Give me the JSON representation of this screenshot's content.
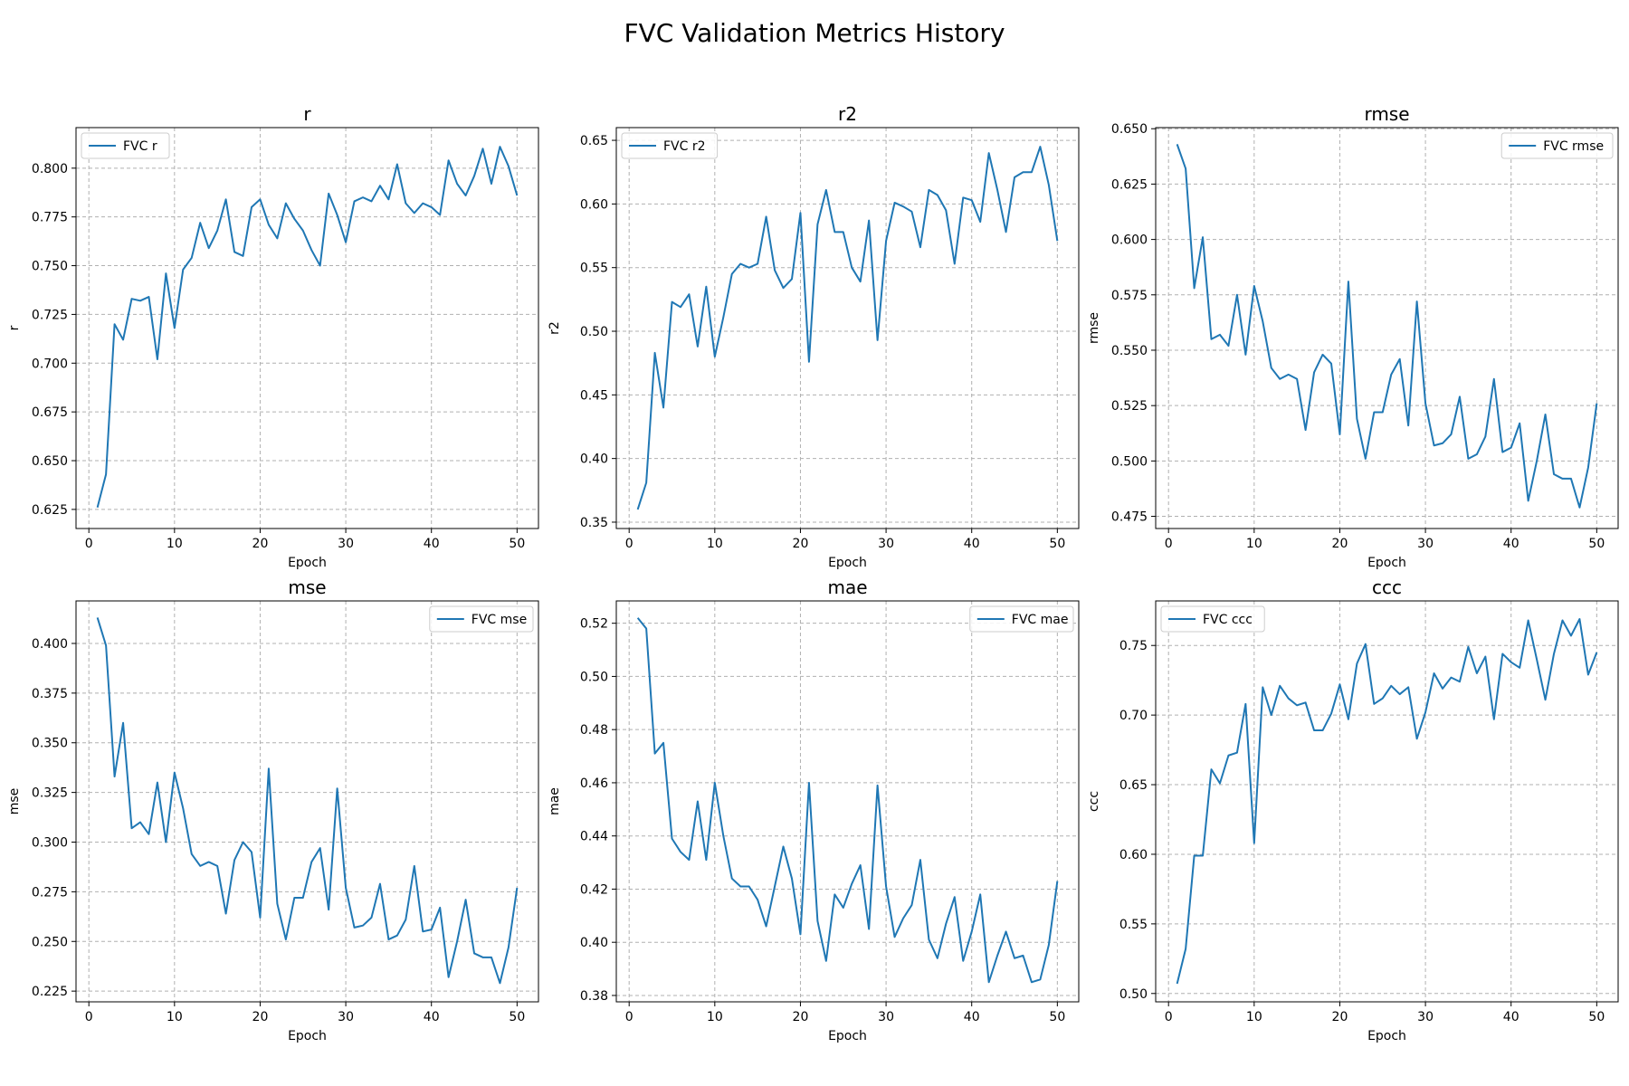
{
  "figure": {
    "title": "FVC Validation Metrics History"
  },
  "style": {
    "line_color": "#1f77b4",
    "grid_color": "#b0b0b0"
  },
  "chart_data": [
    {
      "type": "line",
      "title": "r",
      "xlabel": "Epoch",
      "ylabel": "r",
      "xlim": [
        -1.5,
        52.5
      ],
      "ylim": [
        0.6152,
        0.8208
      ],
      "xticks": [
        0,
        10,
        20,
        30,
        40,
        50
      ],
      "yticks": [
        0.625,
        0.65,
        0.675,
        0.7,
        0.725,
        0.75,
        0.775,
        0.8
      ],
      "grid": true,
      "legend_position": "upper left",
      "series": [
        {
          "name": "FVC r",
          "x": [
            1,
            2,
            3,
            4,
            5,
            6,
            7,
            8,
            9,
            10,
            11,
            12,
            13,
            14,
            15,
            16,
            17,
            18,
            19,
            20,
            21,
            22,
            23,
            24,
            25,
            26,
            27,
            28,
            29,
            30,
            31,
            32,
            33,
            34,
            35,
            36,
            37,
            38,
            39,
            40,
            41,
            42,
            43,
            44,
            45,
            46,
            47,
            48,
            49,
            50
          ],
          "values": [
            0.626,
            0.643,
            0.72,
            0.712,
            0.733,
            0.732,
            0.734,
            0.702,
            0.746,
            0.718,
            0.748,
            0.754,
            0.772,
            0.759,
            0.768,
            0.784,
            0.757,
            0.755,
            0.78,
            0.784,
            0.771,
            0.764,
            0.782,
            0.774,
            0.768,
            0.758,
            0.75,
            0.787,
            0.776,
            0.762,
            0.783,
            0.785,
            0.783,
            0.791,
            0.784,
            0.802,
            0.782,
            0.777,
            0.782,
            0.78,
            0.776,
            0.804,
            0.792,
            0.786,
            0.796,
            0.81,
            0.792,
            0.811,
            0.801,
            0.786
          ]
        }
      ]
    },
    {
      "type": "line",
      "title": "r2",
      "xlabel": "Epoch",
      "ylabel": "r2",
      "xlim": [
        -1.5,
        52.5
      ],
      "ylim": [
        0.345,
        0.66
      ],
      "xticks": [
        0,
        10,
        20,
        30,
        40,
        50
      ],
      "yticks": [
        0.35,
        0.4,
        0.45,
        0.5,
        0.55,
        0.6,
        0.65
      ],
      "grid": true,
      "legend_position": "upper left",
      "series": [
        {
          "name": "FVC r2",
          "x": [
            1,
            2,
            3,
            4,
            5,
            6,
            7,
            8,
            9,
            10,
            11,
            12,
            13,
            14,
            15,
            16,
            17,
            18,
            19,
            20,
            21,
            22,
            23,
            24,
            25,
            26,
            27,
            28,
            29,
            30,
            31,
            32,
            33,
            34,
            35,
            36,
            37,
            38,
            39,
            40,
            41,
            42,
            43,
            44,
            45,
            46,
            47,
            48,
            49,
            50
          ],
          "values": [
            0.36,
            0.381,
            0.483,
            0.44,
            0.523,
            0.519,
            0.529,
            0.488,
            0.535,
            0.48,
            0.511,
            0.545,
            0.553,
            0.55,
            0.553,
            0.59,
            0.548,
            0.534,
            0.541,
            0.593,
            0.476,
            0.584,
            0.611,
            0.578,
            0.578,
            0.55,
            0.539,
            0.587,
            0.493,
            0.571,
            0.601,
            0.598,
            0.594,
            0.566,
            0.611,
            0.607,
            0.595,
            0.553,
            0.605,
            0.603,
            0.586,
            0.64,
            0.611,
            0.578,
            0.621,
            0.625,
            0.625,
            0.645,
            0.615,
            0.571
          ]
        }
      ]
    },
    {
      "type": "line",
      "title": "rmse",
      "xlabel": "Epoch",
      "ylabel": "rmse",
      "xlim": [
        -1.5,
        52.5
      ],
      "ylim": [
        0.4695,
        0.6505
      ],
      "xticks": [
        0,
        10,
        20,
        30,
        40,
        50
      ],
      "yticks": [
        0.475,
        0.5,
        0.525,
        0.55,
        0.575,
        0.6,
        0.625,
        0.65
      ],
      "grid": true,
      "legend_position": "upper right",
      "series": [
        {
          "name": "FVC rmse",
          "x": [
            1,
            2,
            3,
            4,
            5,
            6,
            7,
            8,
            9,
            10,
            11,
            12,
            13,
            14,
            15,
            16,
            17,
            18,
            19,
            20,
            21,
            22,
            23,
            24,
            25,
            26,
            27,
            28,
            29,
            30,
            31,
            32,
            33,
            34,
            35,
            36,
            37,
            38,
            39,
            40,
            41,
            42,
            43,
            44,
            45,
            46,
            47,
            48,
            49,
            50
          ],
          "values": [
            0.643,
            0.632,
            0.578,
            0.601,
            0.555,
            0.557,
            0.552,
            0.575,
            0.548,
            0.579,
            0.563,
            0.542,
            0.537,
            0.539,
            0.537,
            0.514,
            0.54,
            0.548,
            0.544,
            0.512,
            0.581,
            0.519,
            0.501,
            0.522,
            0.522,
            0.539,
            0.546,
            0.516,
            0.572,
            0.526,
            0.507,
            0.508,
            0.512,
            0.529,
            0.501,
            0.503,
            0.511,
            0.537,
            0.504,
            0.506,
            0.517,
            0.482,
            0.5,
            0.521,
            0.494,
            0.492,
            0.492,
            0.479,
            0.497,
            0.526
          ]
        }
      ]
    },
    {
      "type": "line",
      "title": "mse",
      "xlabel": "Epoch",
      "ylabel": "mse",
      "xlim": [
        -1.5,
        52.5
      ],
      "ylim": [
        0.2196,
        0.4214
      ],
      "xticks": [
        0,
        10,
        20,
        30,
        40,
        50
      ],
      "yticks": [
        0.225,
        0.25,
        0.275,
        0.3,
        0.325,
        0.35,
        0.375,
        0.4
      ],
      "grid": true,
      "legend_position": "upper right",
      "series": [
        {
          "name": "FVC mse",
          "x": [
            1,
            2,
            3,
            4,
            5,
            6,
            7,
            8,
            9,
            10,
            11,
            12,
            13,
            14,
            15,
            16,
            17,
            18,
            19,
            20,
            21,
            22,
            23,
            24,
            25,
            26,
            27,
            28,
            29,
            30,
            31,
            32,
            33,
            34,
            35,
            36,
            37,
            38,
            39,
            40,
            41,
            42,
            43,
            44,
            45,
            46,
            47,
            48,
            49,
            50
          ],
          "values": [
            0.413,
            0.399,
            0.333,
            0.36,
            0.307,
            0.31,
            0.304,
            0.33,
            0.3,
            0.335,
            0.317,
            0.294,
            0.288,
            0.29,
            0.288,
            0.264,
            0.291,
            0.3,
            0.295,
            0.262,
            0.337,
            0.269,
            0.251,
            0.272,
            0.272,
            0.29,
            0.297,
            0.266,
            0.327,
            0.277,
            0.257,
            0.258,
            0.262,
            0.279,
            0.251,
            0.253,
            0.261,
            0.288,
            0.255,
            0.256,
            0.267,
            0.232,
            0.25,
            0.271,
            0.244,
            0.242,
            0.242,
            0.229,
            0.247,
            0.277
          ]
        }
      ]
    },
    {
      "type": "line",
      "title": "mae",
      "xlabel": "Epoch",
      "ylabel": "mae",
      "xlim": [
        -1.5,
        52.5
      ],
      "ylim": [
        0.3776,
        0.5284
      ],
      "xticks": [
        0,
        10,
        20,
        30,
        40,
        50
      ],
      "yticks": [
        0.38,
        0.4,
        0.42,
        0.44,
        0.46,
        0.48,
        0.5,
        0.52
      ],
      "grid": true,
      "legend_position": "upper right",
      "series": [
        {
          "name": "FVC mae",
          "x": [
            1,
            2,
            3,
            4,
            5,
            6,
            7,
            8,
            9,
            10,
            11,
            12,
            13,
            14,
            15,
            16,
            17,
            18,
            19,
            20,
            21,
            22,
            23,
            24,
            25,
            26,
            27,
            28,
            29,
            30,
            31,
            32,
            33,
            34,
            35,
            36,
            37,
            38,
            39,
            40,
            41,
            42,
            43,
            44,
            45,
            46,
            47,
            48,
            49,
            50
          ],
          "values": [
            0.522,
            0.518,
            0.471,
            0.475,
            0.439,
            0.434,
            0.431,
            0.453,
            0.431,
            0.46,
            0.44,
            0.424,
            0.421,
            0.421,
            0.416,
            0.406,
            0.421,
            0.436,
            0.424,
            0.403,
            0.46,
            0.408,
            0.393,
            0.418,
            0.413,
            0.422,
            0.429,
            0.405,
            0.459,
            0.421,
            0.402,
            0.409,
            0.414,
            0.431,
            0.401,
            0.394,
            0.407,
            0.417,
            0.393,
            0.404,
            0.418,
            0.385,
            0.395,
            0.404,
            0.394,
            0.395,
            0.385,
            0.386,
            0.399,
            0.423
          ]
        }
      ]
    },
    {
      "type": "line",
      "title": "ccc",
      "xlabel": "Epoch",
      "ylabel": "ccc",
      "xlim": [
        -1.5,
        52.5
      ],
      "ylim": [
        0.494,
        0.782
      ],
      "xticks": [
        0,
        10,
        20,
        30,
        40,
        50
      ],
      "yticks": [
        0.5,
        0.55,
        0.6,
        0.65,
        0.7,
        0.75
      ],
      "grid": true,
      "legend_position": "upper left",
      "series": [
        {
          "name": "FVC ccc",
          "x": [
            1,
            2,
            3,
            4,
            5,
            6,
            7,
            8,
            9,
            10,
            11,
            12,
            13,
            14,
            15,
            16,
            17,
            18,
            19,
            20,
            21,
            22,
            23,
            24,
            25,
            26,
            27,
            28,
            29,
            30,
            31,
            32,
            33,
            34,
            35,
            36,
            37,
            38,
            39,
            40,
            41,
            42,
            43,
            44,
            45,
            46,
            47,
            48,
            49,
            50
          ],
          "values": [
            0.507,
            0.532,
            0.599,
            0.599,
            0.661,
            0.651,
            0.671,
            0.673,
            0.708,
            0.608,
            0.72,
            0.7,
            0.721,
            0.712,
            0.707,
            0.709,
            0.689,
            0.689,
            0.701,
            0.722,
            0.697,
            0.737,
            0.751,
            0.708,
            0.712,
            0.721,
            0.715,
            0.72,
            0.683,
            0.702,
            0.73,
            0.719,
            0.727,
            0.724,
            0.749,
            0.73,
            0.742,
            0.697,
            0.744,
            0.738,
            0.734,
            0.768,
            0.74,
            0.711,
            0.744,
            0.768,
            0.757,
            0.769,
            0.729,
            0.745
          ]
        }
      ]
    }
  ]
}
